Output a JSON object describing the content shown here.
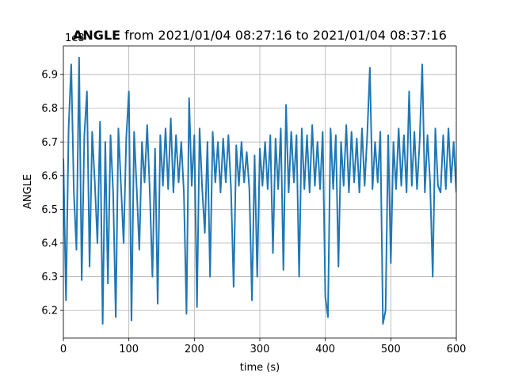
{
  "chart_data": {
    "type": "line",
    "title": {
      "variable": "ANGLE",
      "range": "from 2021/01/04 08:27:16 to 2021/01/04 08:37:16"
    },
    "x_label": "time (s)",
    "y_label": "ANGLE",
    "y_offset_label": "1e8",
    "xlim": [
      0,
      600
    ],
    "xticks": [
      0,
      100,
      200,
      300,
      400,
      500,
      600
    ],
    "ylim": [
      6.118,
      6.985
    ],
    "yticks": [
      6.2,
      6.3,
      6.4,
      6.5,
      6.6,
      6.7,
      6.8,
      6.9
    ],
    "grid": true,
    "series": [
      {
        "name": "ANGLE",
        "color": "#1f77b4",
        "x": [
          0,
          4,
          8,
          12,
          16,
          20,
          24,
          28,
          32,
          36,
          40,
          44,
          48,
          52,
          56,
          60,
          64,
          68,
          72,
          76,
          80,
          84,
          88,
          92,
          96,
          100,
          104,
          108,
          112,
          116,
          120,
          124,
          128,
          132,
          136,
          140,
          144,
          148,
          152,
          156,
          160,
          164,
          168,
          172,
          176,
          180,
          184,
          188,
          192,
          196,
          200,
          204,
          208,
          212,
          216,
          220,
          224,
          228,
          232,
          236,
          240,
          244,
          248,
          252,
          256,
          260,
          264,
          268,
          272,
          276,
          280,
          284,
          288,
          292,
          296,
          300,
          304,
          308,
          312,
          316,
          320,
          324,
          328,
          332,
          336,
          340,
          344,
          348,
          352,
          356,
          360,
          364,
          368,
          372,
          376,
          380,
          384,
          388,
          392,
          396,
          400,
          404,
          408,
          412,
          416,
          420,
          424,
          428,
          432,
          436,
          440,
          444,
          448,
          452,
          456,
          460,
          464,
          468,
          472,
          476,
          480,
          484,
          488,
          492,
          496,
          500,
          504,
          508,
          512,
          516,
          520,
          524,
          528,
          532,
          536,
          540,
          544,
          548,
          552,
          556,
          560,
          564,
          568,
          572,
          576,
          580,
          584,
          588,
          592,
          596,
          600
        ],
        "values": [
          6.65,
          6.23,
          6.74,
          6.93,
          6.55,
          6.38,
          6.95,
          6.29,
          6.72,
          6.85,
          6.33,
          6.73,
          6.58,
          6.4,
          6.76,
          6.16,
          6.7,
          6.28,
          6.72,
          6.55,
          6.18,
          6.74,
          6.57,
          6.4,
          6.71,
          6.85,
          6.17,
          6.73,
          6.56,
          6.38,
          6.7,
          6.58,
          6.75,
          6.55,
          6.3,
          6.68,
          6.22,
          6.72,
          6.57,
          6.74,
          6.56,
          6.77,
          6.55,
          6.72,
          6.58,
          6.7,
          6.55,
          6.19,
          6.83,
          6.57,
          6.72,
          6.21,
          6.74,
          6.56,
          6.43,
          6.7,
          6.3,
          6.73,
          6.58,
          6.7,
          6.55,
          6.71,
          6.58,
          6.72,
          6.56,
          6.27,
          6.69,
          6.57,
          6.7,
          6.58,
          6.67,
          6.56,
          6.23,
          6.66,
          6.3,
          6.68,
          6.57,
          6.7,
          6.56,
          6.72,
          6.37,
          6.71,
          6.56,
          6.74,
          6.32,
          6.81,
          6.55,
          6.73,
          6.58,
          6.72,
          6.3,
          6.74,
          6.56,
          6.72,
          6.55,
          6.75,
          6.57,
          6.7,
          6.56,
          6.73,
          6.24,
          6.18,
          6.74,
          6.56,
          6.72,
          6.33,
          6.7,
          6.57,
          6.75,
          6.55,
          6.73,
          6.58,
          6.71,
          6.55,
          6.74,
          6.57,
          6.72,
          6.92,
          6.56,
          6.7,
          6.58,
          6.73,
          6.16,
          6.2,
          6.72,
          6.34,
          6.7,
          6.56,
          6.74,
          6.57,
          6.72,
          6.55,
          6.85,
          6.57,
          6.73,
          6.56,
          6.7,
          6.93,
          6.55,
          6.72,
          6.58,
          6.3,
          6.74,
          6.57,
          6.55,
          6.72,
          6.56,
          6.74,
          6.58,
          6.7,
          6.55
        ]
      }
    ]
  }
}
